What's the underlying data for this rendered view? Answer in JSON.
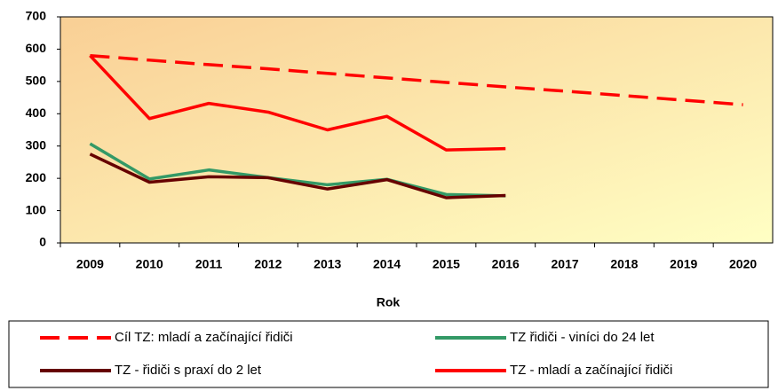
{
  "chart_data": {
    "type": "line",
    "x_label": "Rok",
    "categories": [
      "2009",
      "2010",
      "2011",
      "2012",
      "2013",
      "2014",
      "2015",
      "2016",
      "2017",
      "2018",
      "2019",
      "2020"
    ],
    "ylim": [
      0,
      700
    ],
    "yticks": [
      0,
      100,
      200,
      300,
      400,
      500,
      600,
      700
    ],
    "series": [
      {
        "name": "Cíl TZ: mladí a začínající řidiči",
        "color": "#ff0000",
        "dashed": true,
        "values": [
          580,
          566,
          552,
          539,
          525,
          511,
          497,
          483,
          470,
          456,
          442,
          428
        ]
      },
      {
        "name": "TZ řidiči - viníci do 24 let",
        "color": "#339966",
        "dashed": false,
        "values": [
          307,
          198,
          226,
          202,
          180,
          197,
          150,
          146,
          null,
          null,
          null,
          null
        ]
      },
      {
        "name": "TZ - řidiči s praxí do 2 let",
        "color": "#660000",
        "dashed": false,
        "values": [
          275,
          188,
          205,
          202,
          167,
          196,
          140,
          147,
          null,
          null,
          null,
          null
        ]
      },
      {
        "name": "TZ - mladí a začínající řidiči",
        "color": "#ff0000",
        "dashed": false,
        "values": [
          580,
          385,
          432,
          405,
          350,
          392,
          288,
          292,
          null,
          null,
          null,
          null
        ]
      }
    ]
  }
}
